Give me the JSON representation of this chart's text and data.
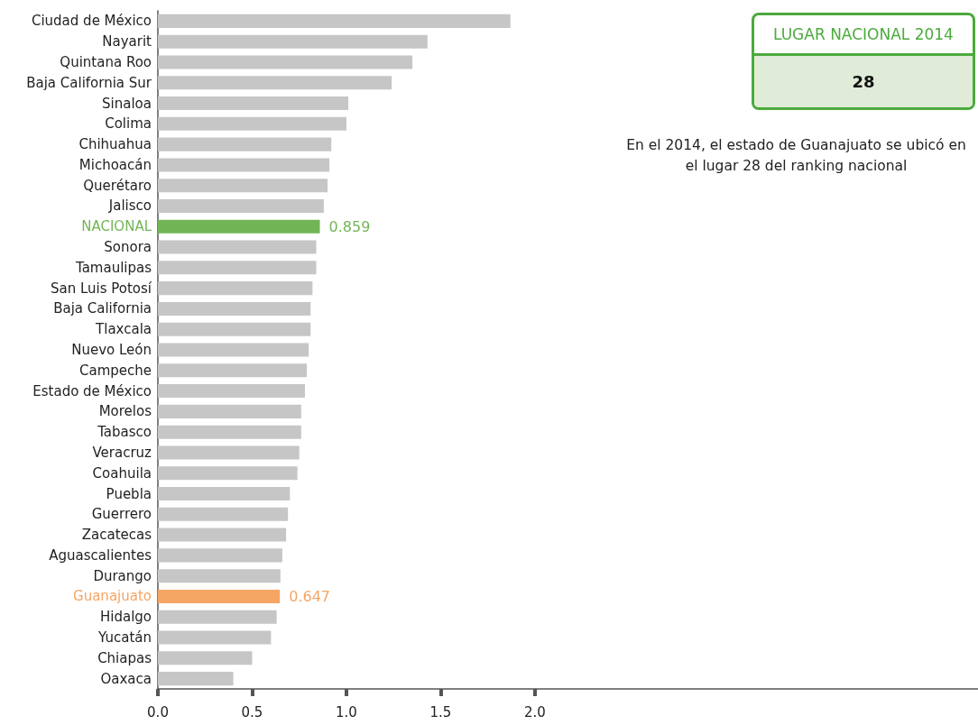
{
  "chart_data": {
    "type": "bar",
    "orientation": "horizontal",
    "categories": [
      "Ciudad de México",
      "Nayarit",
      "Quintana Roo",
      "Baja California Sur",
      "Sinaloa",
      "Colima",
      "Chihuahua",
      "Michoacán",
      "Querétaro",
      "Jalisco",
      "NACIONAL",
      "Sonora",
      "Tamaulipas",
      "San Luis Potosí",
      "Baja California",
      "Tlaxcala",
      "Nuevo León",
      "Campeche",
      "Estado de México",
      "Morelos",
      "Tabasco",
      "Veracruz",
      "Coahuila",
      "Puebla",
      "Guerrero",
      "Zacatecas",
      "Aguascalientes",
      "Durango",
      "Guanajuato",
      "Hidalgo",
      "Yucatán",
      "Chiapas",
      "Oaxaca"
    ],
    "values": [
      1.87,
      1.43,
      1.35,
      1.24,
      1.01,
      1.0,
      0.92,
      0.91,
      0.9,
      0.88,
      0.859,
      0.84,
      0.84,
      0.82,
      0.81,
      0.81,
      0.8,
      0.79,
      0.78,
      0.76,
      0.76,
      0.75,
      0.74,
      0.7,
      0.69,
      0.68,
      0.66,
      0.65,
      0.647,
      0.63,
      0.6,
      0.5,
      0.4
    ],
    "colors": [
      "#c6c6c6",
      "#c6c6c6",
      "#c6c6c6",
      "#c6c6c6",
      "#c6c6c6",
      "#c6c6c6",
      "#c6c6c6",
      "#c6c6c6",
      "#c6c6c6",
      "#c6c6c6",
      "#72b556",
      "#c6c6c6",
      "#c6c6c6",
      "#c6c6c6",
      "#c6c6c6",
      "#c6c6c6",
      "#c6c6c6",
      "#c6c6c6",
      "#c6c6c6",
      "#c6c6c6",
      "#c6c6c6",
      "#c6c6c6",
      "#c6c6c6",
      "#c6c6c6",
      "#c6c6c6",
      "#c6c6c6",
      "#c6c6c6",
      "#c6c6c6",
      "#f5a564",
      "#c6c6c6",
      "#c6c6c6",
      "#c6c6c6",
      "#c6c6c6"
    ],
    "value_labels": [
      null,
      null,
      null,
      null,
      null,
      null,
      null,
      null,
      null,
      null,
      "0.859",
      null,
      null,
      null,
      null,
      null,
      null,
      null,
      null,
      null,
      null,
      null,
      null,
      null,
      null,
      null,
      null,
      null,
      "0.647",
      null,
      null,
      null,
      null
    ],
    "xlim": [
      0,
      4.35
    ],
    "xticks": [
      {
        "value": 0,
        "label": "0.0"
      },
      {
        "value": 0.5,
        "label": "0.5"
      },
      {
        "value": 1,
        "label": "1.0"
      },
      {
        "value": 1.5,
        "label": "1.5"
      },
      {
        "value": 2,
        "label": "2.0"
      }
    ],
    "grid": false,
    "annotations": [
      "LUGAR NACIONAL 2014",
      "28",
      "En el 2014, el estado de Guanajuato se ubicó en el lugar 28 del ranking nacional"
    ]
  }
}
